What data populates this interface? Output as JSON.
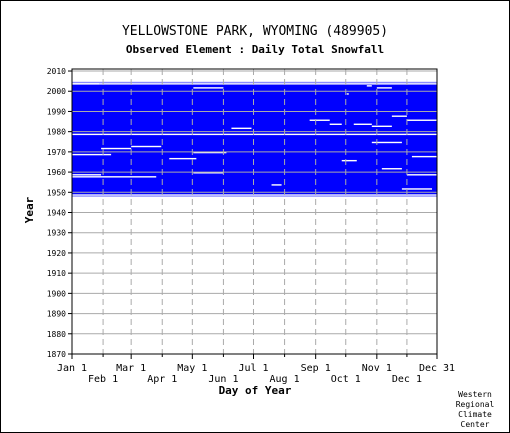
{
  "header": {
    "title": "YELLOWSTONE PARK, WYOMING   (489905)",
    "subtitle": "Observed Element : Daily Total Snowfall"
  },
  "credit": {
    "lines": [
      "Western",
      "Regional",
      "Climate",
      "Center"
    ]
  },
  "colors": {
    "data": "#0000ff",
    "grid": "#aaaaaa",
    "axis": "#000000",
    "background": "#ffffff"
  },
  "chart_data": {
    "type": "heatmap",
    "title": "Observed Element : Daily Total Snowfall",
    "xlabel": "Day of Year",
    "ylabel": "Year",
    "xlim": [
      1,
      365
    ],
    "ylim": [
      1870,
      2011
    ],
    "x_ticks_upper": [
      {
        "label": "Jan 1",
        "day": 1
      },
      {
        "label": "Mar 1",
        "day": 60
      },
      {
        "label": "May 1",
        "day": 121
      },
      {
        "label": "Jul 1",
        "day": 182
      },
      {
        "label": "Sep 1",
        "day": 244
      },
      {
        "label": "Nov 1",
        "day": 305
      },
      {
        "label": "Dec 31",
        "day": 365
      }
    ],
    "x_ticks_lower": [
      {
        "label": "Feb 1",
        "day": 32
      },
      {
        "label": "Apr 1",
        "day": 91
      },
      {
        "label": "Jun 1",
        "day": 152
      },
      {
        "label": "Aug 1",
        "day": 213
      },
      {
        "label": "Oct 1",
        "day": 274
      },
      {
        "label": "Dec 1",
        "day": 335
      }
    ],
    "y_ticks": [
      2010,
      2000,
      1990,
      1980,
      1970,
      1960,
      1950,
      1940,
      1930,
      1920,
      1910,
      1900,
      1890,
      1880,
      1870
    ],
    "grid": true,
    "records": [
      {
        "years": [
          1948,
          2004
        ],
        "days": [
          1,
          365
        ],
        "value": "observed"
      }
    ],
    "missing_gaps": [
      {
        "year": 2004,
        "days": [
          1,
          365
        ]
      },
      {
        "year": 2003,
        "days": [
          1,
          365
        ]
      },
      {
        "year": 2003,
        "days": [
          1,
          28
        ]
      },
      {
        "year": 2003,
        "days": [
          60,
          61
        ]
      },
      {
        "year": 2002,
        "days": [
          295,
          300
        ]
      },
      {
        "year": 2001,
        "days": [
          122,
          152
        ]
      },
      {
        "year": 2001,
        "days": [
          305,
          320
        ]
      },
      {
        "year": 1998,
        "days": [
          275,
          277
        ]
      },
      {
        "year": 1987,
        "days": [
          320,
          335
        ]
      },
      {
        "year": 1985,
        "days": [
          335,
          365
        ]
      },
      {
        "year": 1985,
        "days": [
          238,
          258
        ]
      },
      {
        "year": 1983,
        "days": [
          258,
          270
        ]
      },
      {
        "year": 1983,
        "days": [
          282,
          300
        ]
      },
      {
        "year": 1982,
        "days": [
          300,
          320
        ]
      },
      {
        "year": 1981,
        "days": [
          160,
          180
        ]
      },
      {
        "year": 1978,
        "days": [
          1,
          60
        ]
      },
      {
        "year": 1978,
        "days": [
          60,
          365
        ]
      },
      {
        "year": 1974,
        "days": [
          300,
          330
        ]
      },
      {
        "year": 1972,
        "days": [
          60,
          90
        ]
      },
      {
        "year": 1971,
        "days": [
          30,
          60
        ]
      },
      {
        "year": 1969,
        "days": [
          122,
          155
        ]
      },
      {
        "year": 1968,
        "days": [
          1,
          40
        ]
      },
      {
        "year": 1967,
        "days": [
          340,
          365
        ]
      },
      {
        "year": 1966,
        "days": [
          98,
          125
        ]
      },
      {
        "year": 1965,
        "days": [
          270,
          285
        ]
      },
      {
        "year": 1961,
        "days": [
          310,
          330
        ]
      },
      {
        "year": 1959,
        "days": [
          122,
          152
        ]
      },
      {
        "year": 1958,
        "days": [
          1,
          30
        ]
      },
      {
        "year": 1958,
        "days": [
          335,
          365
        ]
      },
      {
        "year": 1957,
        "days": [
          1,
          85
        ]
      },
      {
        "year": 1953,
        "days": [
          200,
          210
        ]
      },
      {
        "year": 1951,
        "days": [
          330,
          360
        ]
      },
      {
        "year": 1948,
        "days": [
          1,
          60
        ]
      },
      {
        "year": 1948,
        "days": [
          60,
          365
        ]
      }
    ]
  }
}
